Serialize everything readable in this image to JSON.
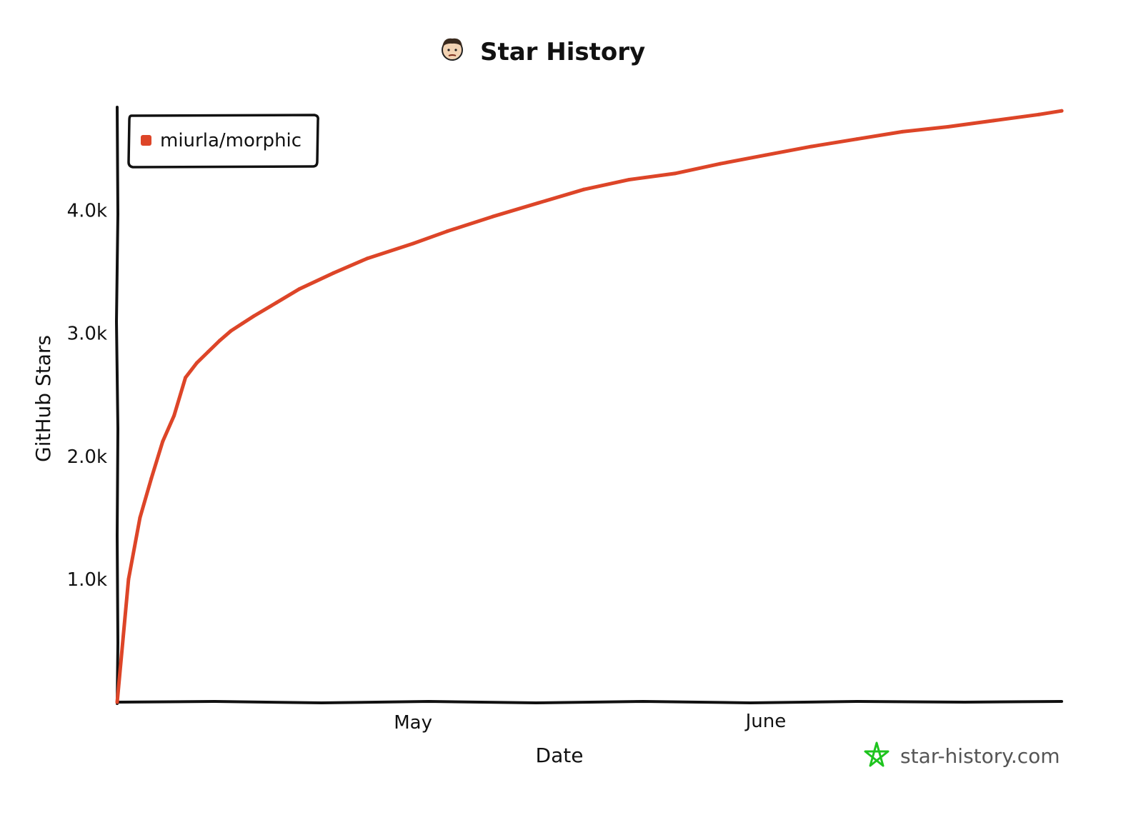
{
  "chart_data": {
    "type": "line",
    "title": "Star History",
    "xlabel": "Date",
    "ylabel": "GitHub Stars",
    "watermark": "star-history.com",
    "x_ticks": [
      "May",
      "June"
    ],
    "y_ticks": [
      "1.0k",
      "2.0k",
      "3.0k",
      "4.0k"
    ],
    "y_tick_values": [
      1000,
      2000,
      3000,
      4000
    ],
    "ylim": [
      0,
      4840
    ],
    "legend_position": "top-left",
    "grid": false,
    "series": [
      {
        "name": "miurla/morphic",
        "color": "#dd4528",
        "x": [
          "2024-04-05",
          "2024-04-06",
          "2024-04-07",
          "2024-04-08",
          "2024-04-09",
          "2024-04-10",
          "2024-04-11",
          "2024-04-12",
          "2024-04-13",
          "2024-04-14",
          "2024-04-15",
          "2024-04-16",
          "2024-04-17",
          "2024-04-19",
          "2024-04-21",
          "2024-04-24",
          "2024-04-27",
          "2024-05-01",
          "2024-05-04",
          "2024-05-08",
          "2024-05-12",
          "2024-05-16",
          "2024-05-20",
          "2024-05-24",
          "2024-05-28",
          "2024-06-01",
          "2024-06-05",
          "2024-06-09",
          "2024-06-13",
          "2024-06-17",
          "2024-06-21",
          "2024-06-25",
          "2024-06-27"
        ],
        "values": [
          0,
          1000,
          1500,
          1820,
          2120,
          2330,
          2640,
          2760,
          2850,
          2940,
          3020,
          3080,
          3140,
          3250,
          3360,
          3490,
          3610,
          3730,
          3830,
          3950,
          4060,
          4170,
          4250,
          4300,
          4380,
          4450,
          4520,
          4580,
          4640,
          4680,
          4730,
          4780,
          4810
        ]
      }
    ]
  }
}
